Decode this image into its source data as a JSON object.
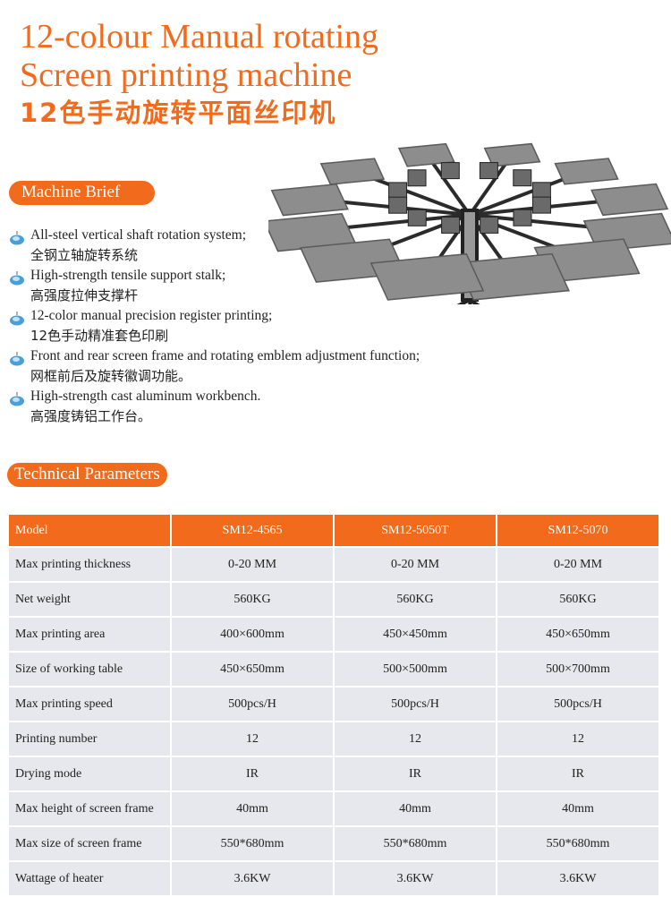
{
  "title": {
    "line1": "12-colour Manual rotating",
    "line2": "Screen printing machine",
    "line3": "12色手动旋转平面丝印机"
  },
  "colors": {
    "accent": "#f26a1b",
    "row_bg": "#e7e7ee"
  },
  "brief": {
    "heading": "Machine Brief",
    "bullet_icon": "blue-gem-pendant-icon",
    "items": [
      {
        "en": "All-steel vertical shaft rotation system;",
        "zh": "全钢立轴旋转系统"
      },
      {
        "en": "High-strength tensile support stalk;",
        "zh": "高强度拉伸支撑杆"
      },
      {
        "en": "12-color manual precision register printing;",
        "zh": "12色手动精准套色印刷"
      },
      {
        "en": "Front and rear screen frame and rotating emblem adjustment function;",
        "zh": "网框前后及旋转徽调功能。"
      },
      {
        "en": "High-strength cast aluminum workbench.",
        "zh": "高强度铸铝工作台。"
      }
    ]
  },
  "params": {
    "heading": "Technical Parameters",
    "columns": [
      "Model",
      "SM12-4565",
      "SM12-5050T",
      "SM12-5070"
    ],
    "rows": [
      [
        "Max printing thickness",
        "0-20 MM",
        "0-20 MM",
        "0-20 MM"
      ],
      [
        "Net weight",
        "560KG",
        "560KG",
        "560KG"
      ],
      [
        "Max printing area",
        "400×600mm",
        "450×450mm",
        "450×650mm"
      ],
      [
        "Size of working table",
        "450×650mm",
        "500×500mm",
        "500×700mm"
      ],
      [
        "Max printing speed",
        "500pcs/H",
        "500pcs/H",
        "500pcs/H"
      ],
      [
        "Printing number",
        "12",
        "12",
        "12"
      ],
      [
        "Drying mode",
        "IR",
        "IR",
        "IR"
      ],
      [
        "Max height of screen frame",
        "40mm",
        "40mm",
        "40mm"
      ],
      [
        "Max size of screen frame",
        "550*680mm",
        "550*680mm",
        "550*680mm"
      ],
      [
        "Wattage of heater",
        "3.6KW",
        "3.6KW",
        "3.6KW"
      ]
    ]
  }
}
